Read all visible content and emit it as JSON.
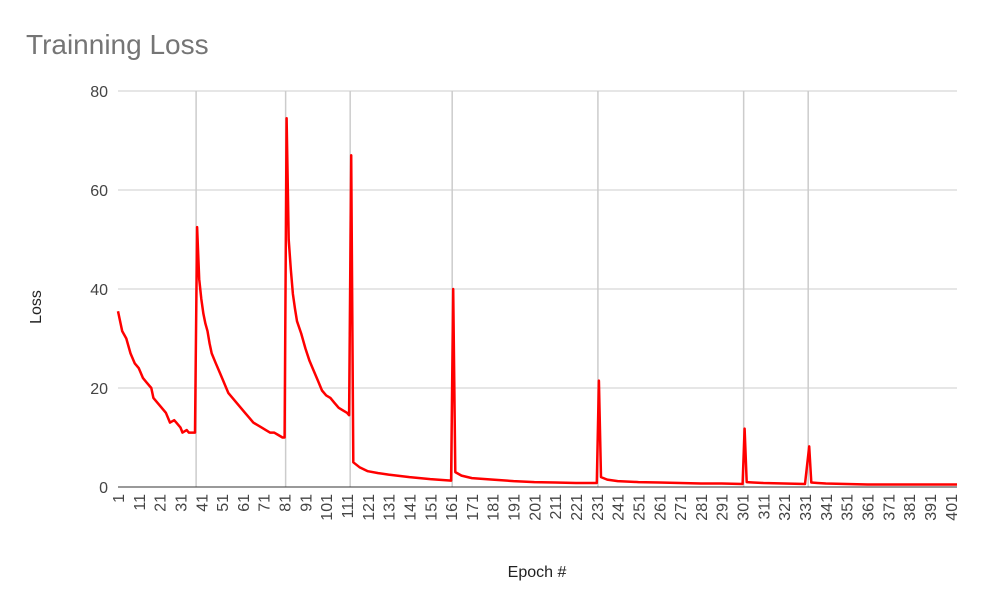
{
  "chart_data": {
    "type": "line",
    "title": "Trainning Loss",
    "xlabel": "Epoch #",
    "ylabel": "Loss",
    "ylim": [
      0,
      80
    ],
    "yticks": [
      0,
      20,
      40,
      60,
      80
    ],
    "xticks": [
      1,
      11,
      21,
      31,
      41,
      51,
      61,
      71,
      81,
      91,
      101,
      111,
      121,
      131,
      141,
      151,
      161,
      171,
      181,
      191,
      201,
      211,
      221,
      231,
      241,
      251,
      261,
      271,
      281,
      291,
      301,
      311,
      321,
      331,
      341,
      351,
      361,
      371,
      381,
      391,
      401
    ],
    "grid": true,
    "legend": "none",
    "color": "#ff0000",
    "restart_epochs": [
      39,
      82,
      113,
      162,
      232,
      302,
      333
    ],
    "series": [
      {
        "points": [
          [
            1,
            35.5
          ],
          [
            3,
            31.5
          ],
          [
            5,
            30.0
          ],
          [
            7,
            27.0
          ],
          [
            9,
            25.0
          ],
          [
            11,
            24.0
          ],
          [
            13,
            22.0
          ],
          [
            15,
            21.0
          ],
          [
            17,
            20.0
          ],
          [
            18,
            18.0
          ],
          [
            20,
            17.0
          ],
          [
            22,
            16.0
          ],
          [
            24,
            15.0
          ],
          [
            26,
            13.0
          ],
          [
            28,
            13.5
          ],
          [
            29,
            13.0
          ],
          [
            31,
            12.0
          ],
          [
            32,
            11.0
          ],
          [
            34,
            11.5
          ],
          [
            35,
            11.0
          ],
          [
            38,
            11.0
          ],
          [
            39,
            52.5
          ],
          [
            40,
            42.0
          ],
          [
            41,
            38.0
          ],
          [
            42,
            35.0
          ],
          [
            43,
            33.0
          ],
          [
            44,
            31.5
          ],
          [
            45,
            29.0
          ],
          [
            46,
            27.0
          ],
          [
            48,
            25.0
          ],
          [
            50,
            23.0
          ],
          [
            52,
            21.0
          ],
          [
            54,
            19.0
          ],
          [
            56,
            18.0
          ],
          [
            58,
            17.0
          ],
          [
            60,
            16.0
          ],
          [
            62,
            15.0
          ],
          [
            64,
            14.0
          ],
          [
            66,
            13.0
          ],
          [
            68,
            12.5
          ],
          [
            70,
            12.0
          ],
          [
            72,
            11.5
          ],
          [
            74,
            11.0
          ],
          [
            76,
            11.0
          ],
          [
            78,
            10.5
          ],
          [
            80,
            10.0
          ],
          [
            81,
            10.0
          ],
          [
            82,
            74.5
          ],
          [
            83,
            50.0
          ],
          [
            84,
            44.0
          ],
          [
            85,
            39.0
          ],
          [
            86,
            36.0
          ],
          [
            87,
            33.5
          ],
          [
            89,
            31.0
          ],
          [
            91,
            28.0
          ],
          [
            93,
            25.5
          ],
          [
            95,
            23.5
          ],
          [
            97,
            21.5
          ],
          [
            99,
            19.5
          ],
          [
            101,
            18.5
          ],
          [
            103,
            18.0
          ],
          [
            105,
            17.0
          ],
          [
            107,
            16.0
          ],
          [
            109,
            15.5
          ],
          [
            111,
            15.0
          ],
          [
            112,
            14.5
          ],
          [
            113,
            67.0
          ],
          [
            114,
            5.0
          ],
          [
            117,
            4.0
          ],
          [
            121,
            3.2
          ],
          [
            126,
            2.8
          ],
          [
            131,
            2.5
          ],
          [
            141,
            2.0
          ],
          [
            151,
            1.6
          ],
          [
            161,
            1.3
          ],
          [
            162,
            40.0
          ],
          [
            163,
            3.0
          ],
          [
            166,
            2.3
          ],
          [
            171,
            1.8
          ],
          [
            181,
            1.5
          ],
          [
            191,
            1.2
          ],
          [
            201,
            1.0
          ],
          [
            211,
            0.9
          ],
          [
            221,
            0.8
          ],
          [
            231,
            0.8
          ],
          [
            232,
            21.5
          ],
          [
            233,
            2.0
          ],
          [
            236,
            1.5
          ],
          [
            241,
            1.2
          ],
          [
            251,
            1.0
          ],
          [
            261,
            0.9
          ],
          [
            271,
            0.8
          ],
          [
            281,
            0.7
          ],
          [
            291,
            0.7
          ],
          [
            301,
            0.6
          ],
          [
            302,
            11.8
          ],
          [
            303,
            1.0
          ],
          [
            306,
            0.9
          ],
          [
            311,
            0.8
          ],
          [
            321,
            0.7
          ],
          [
            331,
            0.6
          ],
          [
            333,
            8.2
          ],
          [
            334,
            0.9
          ],
          [
            337,
            0.8
          ],
          [
            341,
            0.7
          ],
          [
            351,
            0.6
          ],
          [
            361,
            0.5
          ],
          [
            371,
            0.5
          ],
          [
            381,
            0.5
          ],
          [
            391,
            0.5
          ],
          [
            401,
            0.5
          ],
          [
            404,
            0.5
          ]
        ]
      }
    ]
  }
}
